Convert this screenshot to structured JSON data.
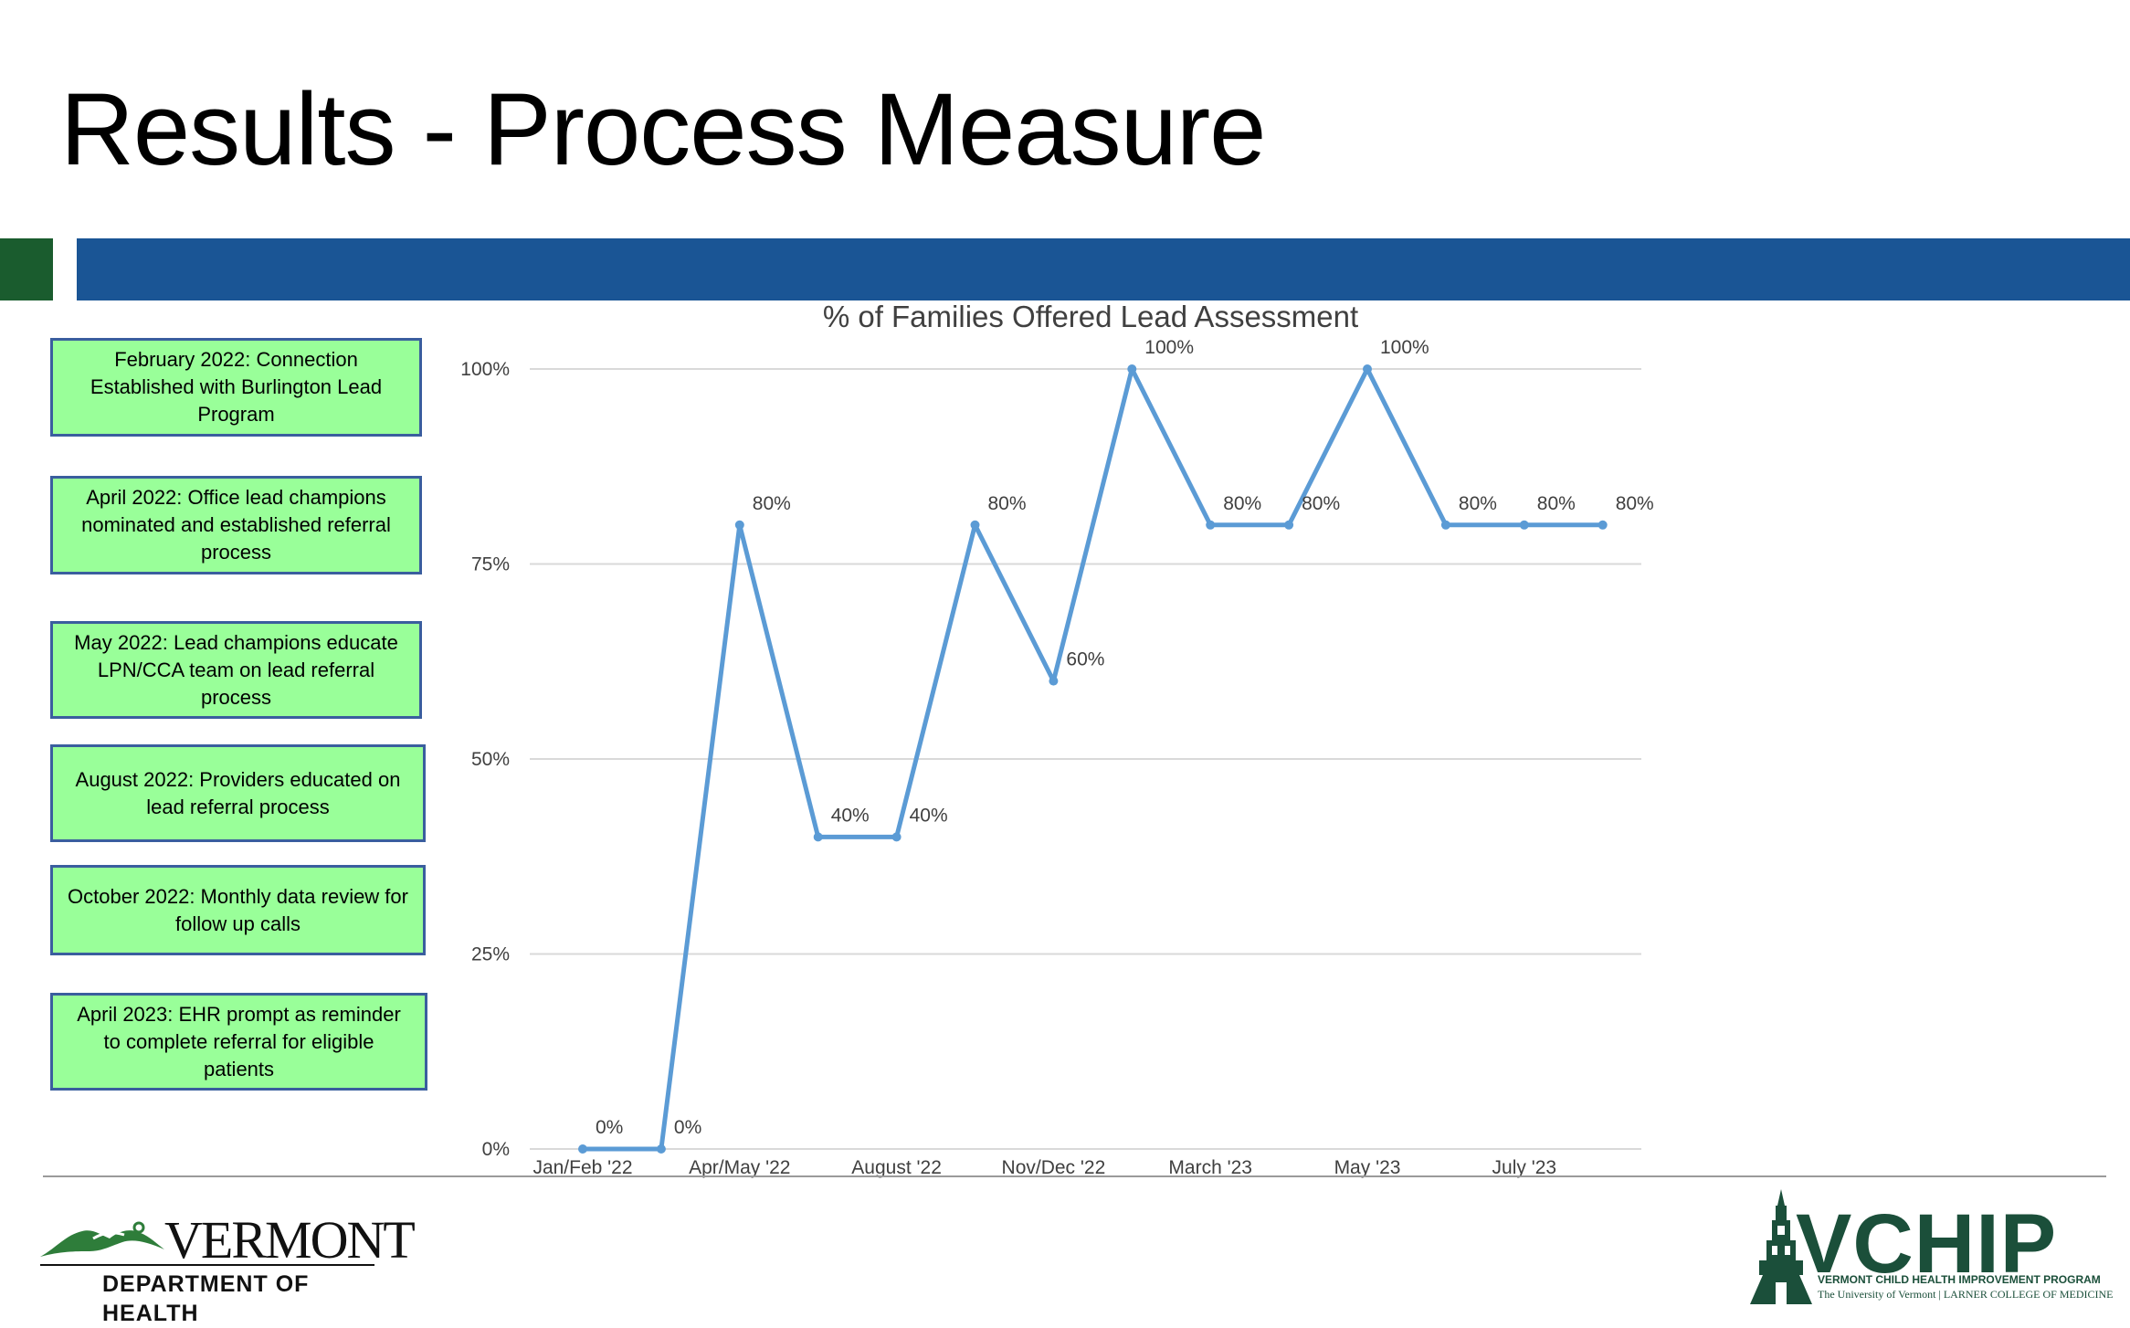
{
  "slide": {
    "title": "Results - Process Measure"
  },
  "notes": [
    "February 2022: Connection Established with Burlington Lead Program",
    "April 2022: Office lead champions nominated and established referral process",
    "May 2022: Lead champions educate LPN/CCA team on lead referral process",
    "August 2022: Providers educated on lead referral process",
    "October 2022: Monthly data review for follow up calls",
    "April 2023: EHR prompt as reminder to complete referral for eligible patients"
  ],
  "chart_data": {
    "type": "line",
    "title": "% of Families Offered Lead Assessment",
    "xlabel": "",
    "ylabel": "",
    "ylim": [
      0,
      100
    ],
    "yticks": [
      "0%",
      "25%",
      "50%",
      "75%",
      "100%"
    ],
    "ytick_values": [
      0,
      25,
      50,
      75,
      100
    ],
    "x_tick_labels": [
      {
        "index": 0,
        "label": "Jan/Feb '22"
      },
      {
        "index": 2,
        "label": "Apr/May '22"
      },
      {
        "index": 4,
        "label": "August '22"
      },
      {
        "index": 6,
        "label": "Nov/Dec '22"
      },
      {
        "index": 8,
        "label": "March '23"
      },
      {
        "index": 10,
        "label": "May '23"
      },
      {
        "index": 12,
        "label": "July '23"
      }
    ],
    "series": [
      {
        "values": [
          0,
          0,
          80,
          40,
          40,
          80,
          60,
          100,
          80,
          80,
          100,
          80,
          80,
          80
        ],
        "data_labels": [
          "0%",
          "0%",
          "80%",
          "40%",
          "40%",
          "80%",
          "60%",
          "100%",
          "80%",
          "80%",
          "100%",
          "80%",
          "80%",
          "80%"
        ],
        "color": "#5b9bd5"
      }
    ],
    "grid": true,
    "legend": "none"
  },
  "footer": {
    "left_logo": {
      "wordmark": "VERMONT",
      "subtitle": "DEPARTMENT OF HEALTH"
    },
    "right_logo": {
      "wordmark": "VCHIP",
      "subtitle": "VERMONT CHILD HEALTH IMPROVEMENT PROGRAM",
      "affiliation": "The University of Vermont | LARNER COLLEGE OF MEDICINE"
    }
  },
  "colors": {
    "accent_green": "#1a5c2e",
    "accent_blue": "#1a5595",
    "note_fill": "#99ff99",
    "note_border": "#3a5e9e",
    "line": "#5b9bd5",
    "grid": "#d9d9d9"
  }
}
